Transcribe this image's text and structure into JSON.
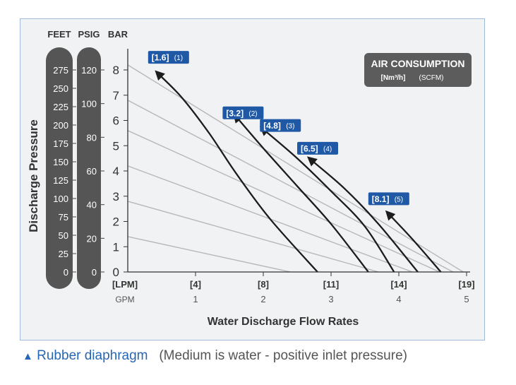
{
  "caption": {
    "marker": "▲",
    "label": "Rubber diaphragm",
    "note": "(Medium is water -  positive inlet pressure)"
  },
  "colors": {
    "badge": "#1f59a6",
    "curve": "#1c1c1c",
    "ref_line": "#b8b8b8",
    "pill": "#555555",
    "legend_box": "#5c5c5c"
  },
  "chart_data": {
    "type": "line",
    "title": "",
    "xlabel": "Water Discharge Flow Rates",
    "ylabel": "Discharge Pressure",
    "xlim": [
      0,
      5
    ],
    "ylim": [
      0,
      8
    ],
    "y_ticks": [
      0,
      1,
      2,
      3,
      4,
      5,
      6,
      7,
      8
    ],
    "x_ticks_gpm": [
      1,
      2,
      3,
      4,
      5
    ],
    "x_unit_gpm": "GPM",
    "x_unit_lpm": "[LPM]",
    "x_ticks_lpm": [
      "[4]",
      "[8]",
      "[11]",
      "[14]",
      "[19]"
    ],
    "secondary_axes": [
      {
        "unit": "FEET",
        "ticks": [
          "275",
          "250",
          "225",
          "200",
          "175",
          "150",
          "125",
          "100",
          "75",
          "50",
          "25",
          "0"
        ],
        "bar": 8
      },
      {
        "unit": "PSIG",
        "ticks": [
          "120",
          "100",
          "80",
          "60",
          "40",
          "20",
          "0"
        ],
        "bar": 8
      }
    ],
    "primary_unit": "BAR",
    "legend": {
      "title": "AIR CONSUMPTION",
      "sub_units": "[Nm³/h]",
      "sub_units_alt": "(SCFM)"
    },
    "air_lines": [
      {
        "bar_at_0": 8.2,
        "flow_at_0": 4.95
      },
      {
        "bar_at_0": 6.8,
        "flow_at_0": 4.8
      },
      {
        "bar_at_0": 5.6,
        "flow_at_0": 4.6
      },
      {
        "bar_at_0": 4.2,
        "flow_at_0": 4.2
      },
      {
        "bar_at_0": 2.8,
        "flow_at_0": 3.7
      },
      {
        "bar_at_0": 1.4,
        "flow_at_0": 2.4
      }
    ],
    "series": [
      {
        "name": "[1.6] (1)",
        "badge": "[1.6]",
        "scfm": "(1)",
        "badge_at": [
          0.3,
          8.5
        ],
        "points": [
          [
            0.45,
            7.85
          ],
          [
            0.8,
            6.9
          ],
          [
            1.2,
            5.5
          ],
          [
            1.6,
            3.9
          ],
          [
            2.1,
            2.1
          ],
          [
            2.8,
            0
          ]
        ]
      },
      {
        "name": "[3.2] (2)",
        "badge": "[3.2]",
        "scfm": "(2)",
        "badge_at": [
          1.4,
          6.3
        ],
        "points": [
          [
            1.6,
            6.15
          ],
          [
            2.0,
            4.9
          ],
          [
            2.5,
            3.4
          ],
          [
            3.0,
            1.9
          ],
          [
            3.55,
            0
          ]
        ]
      },
      {
        "name": "[4.8] (3)",
        "badge": "[4.8]",
        "scfm": "(3)",
        "badge_at": [
          1.95,
          5.8
        ],
        "points": [
          [
            2.0,
            5.65
          ],
          [
            2.5,
            4.5
          ],
          [
            3.0,
            3.2
          ],
          [
            3.5,
            1.8
          ],
          [
            3.93,
            0
          ]
        ]
      },
      {
        "name": "[6.5] (4)",
        "badge": "[6.5]",
        "scfm": "(4)",
        "badge_at": [
          2.5,
          4.9
        ],
        "points": [
          [
            2.7,
            4.45
          ],
          [
            3.2,
            3.3
          ],
          [
            3.7,
            1.9
          ],
          [
            4.28,
            0
          ]
        ]
      },
      {
        "name": "[8.1] (5)",
        "badge": "[8.1]",
        "scfm": "(5)",
        "badge_at": [
          3.55,
          2.9
        ],
        "points": [
          [
            3.85,
            2.3
          ],
          [
            4.2,
            1.3
          ],
          [
            4.62,
            0
          ]
        ]
      }
    ]
  }
}
